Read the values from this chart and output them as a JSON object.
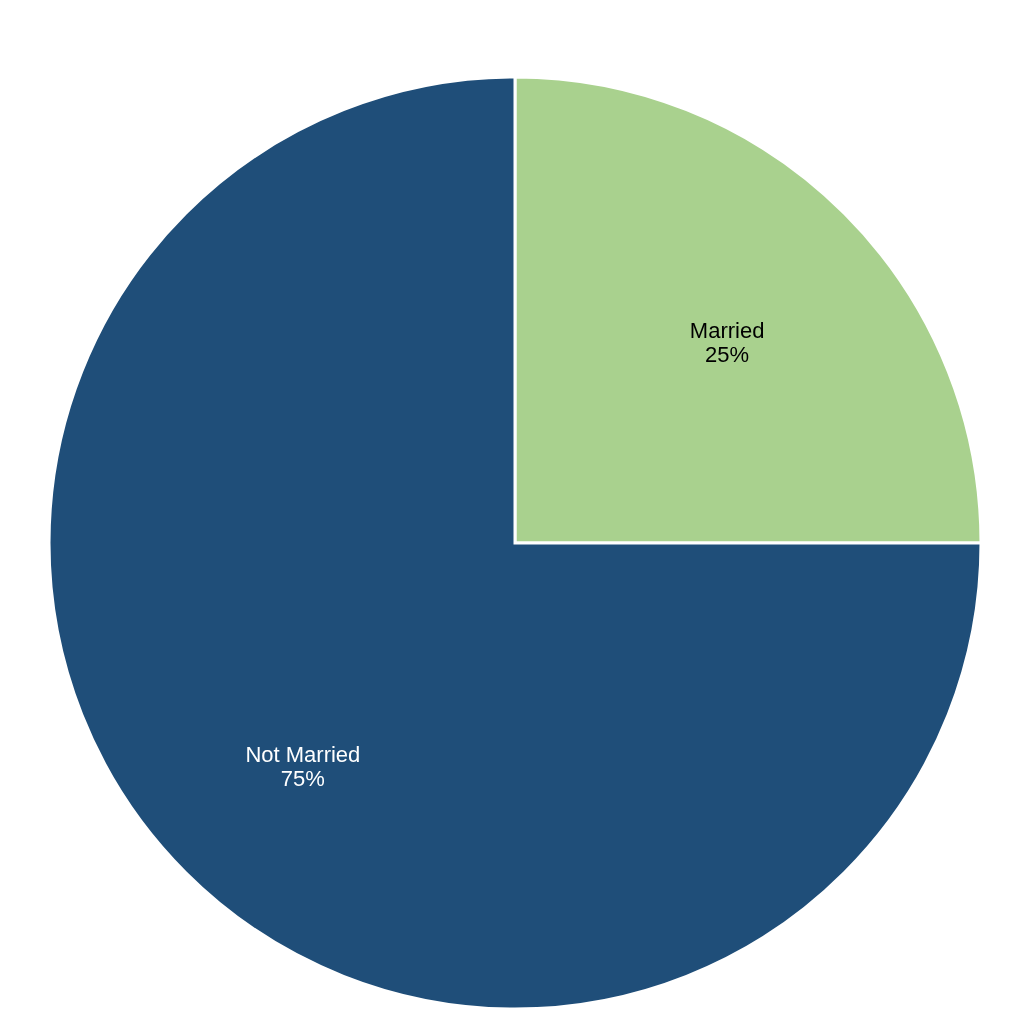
{
  "chart_data": {
    "type": "pie",
    "categories": [
      "Married",
      "Not Married"
    ],
    "values": [
      25,
      75
    ],
    "colors": [
      "#a9d18e",
      "#1f4e79"
    ],
    "value_labels": [
      "25%",
      "75%"
    ],
    "legend": false
  }
}
